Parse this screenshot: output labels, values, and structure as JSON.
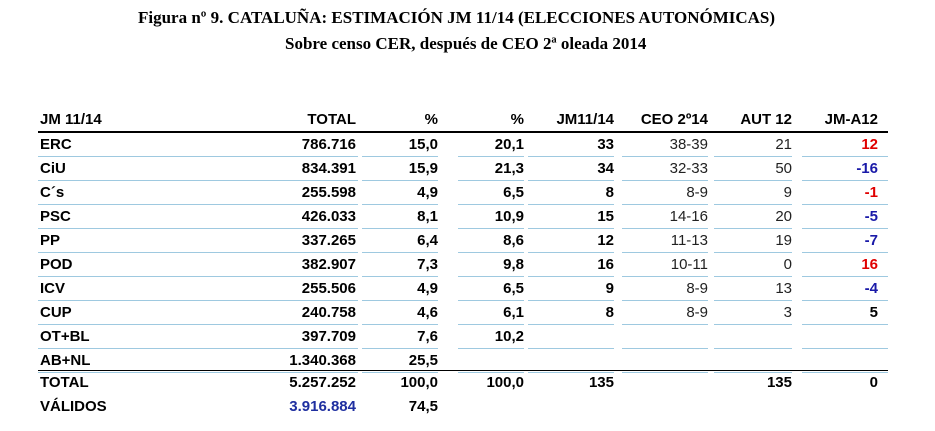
{
  "title_line1": "Figura nº 9. CATALUÑA: ESTIMACIÓN JM 11/14 (ELECCIONES AUTONÓMICAS)",
  "title_line2": "Sobre censo CER, después de  CEO 2ª oleada 2014",
  "headers": [
    "JM 11/14",
    "TOTAL",
    "%",
    "%",
    "JM11/14",
    "CEO 2º14",
    "AUT 12",
    "JM-A12"
  ],
  "rows": [
    {
      "party": "ERC",
      "total": "786.716",
      "pct1": "15,0",
      "pct2": "20,1",
      "jm": "33",
      "ceo": "38-39",
      "aut": "21",
      "diff": "12",
      "diff_color": "red"
    },
    {
      "party": "CiU",
      "total": "834.391",
      "pct1": "15,9",
      "pct2": "21,3",
      "jm": "34",
      "ceo": "32-33",
      "aut": "50",
      "diff": "-16",
      "diff_color": "blue"
    },
    {
      "party": "C´s",
      "total": "255.598",
      "pct1": "4,9",
      "pct2": "6,5",
      "jm": "8",
      "ceo": "8-9",
      "aut": "9",
      "diff": "-1",
      "diff_color": "red"
    },
    {
      "party": "PSC",
      "total": "426.033",
      "pct1": "8,1",
      "pct2": "10,9",
      "jm": "15",
      "ceo": "14-16",
      "aut": "20",
      "diff": "-5",
      "diff_color": "blue"
    },
    {
      "party": "PP",
      "total": "337.265",
      "pct1": "6,4",
      "pct2": "8,6",
      "jm": "12",
      "ceo": "11-13",
      "aut": "19",
      "diff": "-7",
      "diff_color": "blue"
    },
    {
      "party": "POD",
      "total": "382.907",
      "pct1": "7,3",
      "pct2": "9,8",
      "jm": "16",
      "ceo": "10-11",
      "aut": "0",
      "diff": "16",
      "diff_color": "red"
    },
    {
      "party": "ICV",
      "total": "255.506",
      "pct1": "4,9",
      "pct2": "6,5",
      "jm": "9",
      "ceo": "8-9",
      "aut": "13",
      "diff": "-4",
      "diff_color": "blue"
    },
    {
      "party": "CUP",
      "total": "240.758",
      "pct1": "4,6",
      "pct2": "6,1",
      "jm": "8",
      "ceo": "8-9",
      "aut": "3",
      "diff": "5",
      "diff_color": "black"
    },
    {
      "party": "OT+BL",
      "total": "397.709",
      "pct1": "7,6",
      "pct2": "10,2",
      "jm": "",
      "ceo": "",
      "aut": "",
      "diff": "",
      "diff_color": "black"
    },
    {
      "party": "AB+NL",
      "total": "1.340.368",
      "pct1": "25,5",
      "pct2": "",
      "jm": "",
      "ceo": "",
      "aut": "",
      "diff": "",
      "diff_color": "black"
    }
  ],
  "total_row": {
    "party": "TOTAL",
    "total": "5.257.252",
    "pct1": "100,0",
    "pct2": "100,0",
    "jm": "135",
    "ceo": "",
    "aut": "135",
    "diff": "0"
  },
  "validos_row": {
    "party": "VÁLIDOS",
    "total": "3.916.884",
    "pct1": "74,5"
  },
  "colors": {
    "red": "#e00000",
    "blue": "#1a1aa8",
    "separator": "#9ec9e0",
    "validos_total": "#1f2fa0"
  }
}
